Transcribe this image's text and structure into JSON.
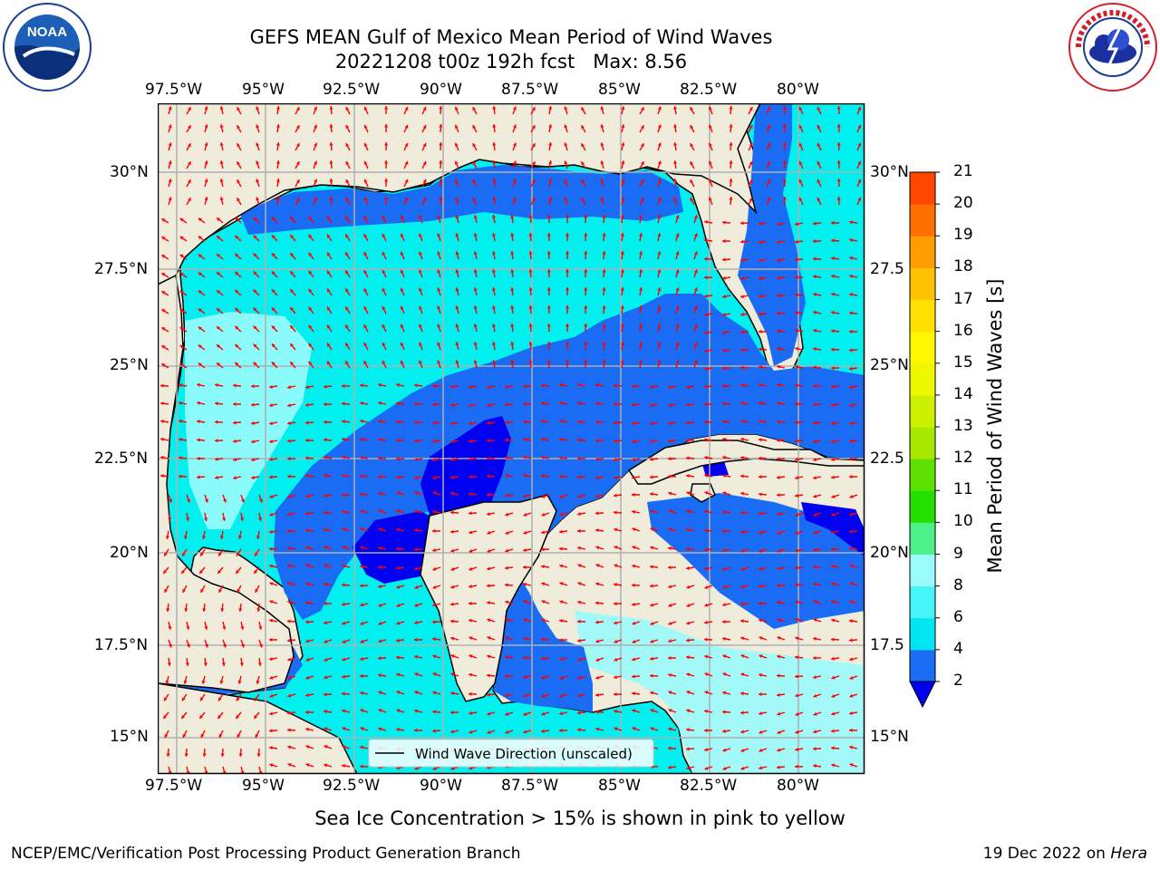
{
  "title": {
    "line1": "GEFS MEAN Gulf of Mexico Mean Period of Wind Waves",
    "line2": "20221208 t00z 192h fcst   Max: 8.56"
  },
  "logos": {
    "left": {
      "name": "NOAA",
      "ring_text": "NATIONAL OCEANIC AND ATMOSPHERIC ADMINISTRATION · U.S. DEPARTMENT OF COMMERCE"
    },
    "right": {
      "name": "NATIONAL WEATHER SERVICE"
    }
  },
  "map": {
    "x_ticks": [
      "97.5°W",
      "95°W",
      "92.5°W",
      "90°W",
      "87.5°W",
      "85°W",
      "82.5°W",
      "80°W"
    ],
    "y_ticks_left": [
      "30°N",
      "27.5°N",
      "25°N",
      "22.5°N",
      "20°N",
      "17.5°N",
      "15°N"
    ],
    "y_ticks_right": [
      "30°N",
      "27.5",
      "25°N",
      "22.5",
      "20°N",
      "17.5",
      "15°N"
    ],
    "legend_label": "Wind Wave Direction (unscaled)",
    "colors": {
      "land": "#efecdc",
      "grid": "#b0b0b0",
      "arrow": "#ff0000"
    }
  },
  "colorbar": {
    "label": "Mean Period of Wind Waves [s]",
    "ticks": [
      "2",
      "4",
      "6",
      "8",
      "9",
      "10",
      "11",
      "12",
      "13",
      "14",
      "15",
      "16",
      "17",
      "18",
      "19",
      "20",
      "21"
    ],
    "colors": [
      "#1a6cf5",
      "#00e6f0",
      "#44f4f6",
      "#99fbfb",
      "#4ef08a",
      "#22e000",
      "#5ee000",
      "#a8e800",
      "#cdf000",
      "#eef800",
      "#fff600",
      "#ffe000",
      "#ffc000",
      "#ff9c00",
      "#ff7000",
      "#ff4600",
      "#ff1a00",
      "#ff0000"
    ],
    "under_color": "#0000f0"
  },
  "footer": {
    "center": "Sea Ice Concentration > 15% is shown in pink to yellow",
    "left": "NCEP/EMC/Verification Post Processing Product Generation Branch",
    "right_prefix": "19 Dec 2022 on",
    "right_host": "Hera"
  }
}
